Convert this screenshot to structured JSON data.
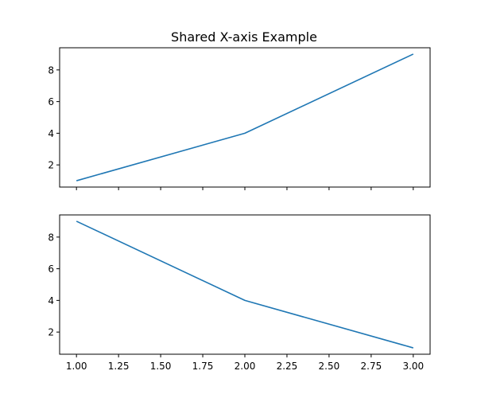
{
  "chart_data": {
    "title": "Shared X-axis Example",
    "shared_x": true,
    "xlim": [
      0.9,
      3.1
    ],
    "xticks": [
      1.0,
      1.25,
      1.5,
      1.75,
      2.0,
      2.25,
      2.5,
      2.75,
      3.0
    ],
    "xtick_labels": [
      "1.00",
      "1.25",
      "1.50",
      "1.75",
      "2.00",
      "2.25",
      "2.50",
      "2.75",
      "3.00"
    ],
    "grid": false,
    "subplots": [
      {
        "type": "line",
        "x": [
          1,
          2,
          3
        ],
        "y": [
          1,
          4,
          9
        ],
        "ylim": [
          0.6,
          9.4
        ],
        "yticks": [
          2,
          4,
          6,
          8
        ],
        "ytick_labels": [
          "2",
          "4",
          "6",
          "8"
        ],
        "show_xtick_labels": false,
        "color": "#1f77b4"
      },
      {
        "type": "line",
        "x": [
          1,
          2,
          3
        ],
        "y": [
          9,
          4,
          1
        ],
        "ylim": [
          0.6,
          9.4
        ],
        "yticks": [
          2,
          4,
          6,
          8
        ],
        "ytick_labels": [
          "2",
          "4",
          "6",
          "8"
        ],
        "show_xtick_labels": true,
        "color": "#1f77b4"
      }
    ]
  }
}
